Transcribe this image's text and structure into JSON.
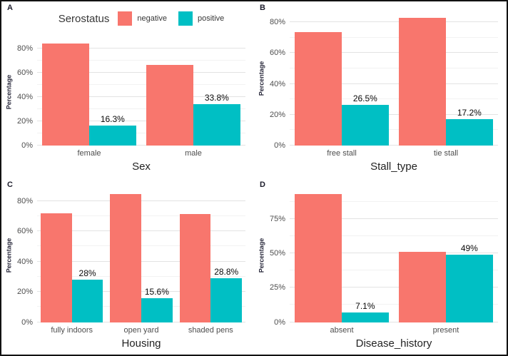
{
  "figure": {
    "legend": {
      "title": "Serostatus",
      "position": "top",
      "items": [
        {
          "label": "negative",
          "color": "#F8766D"
        },
        {
          "label": "positive",
          "color": "#00BFC4"
        }
      ]
    },
    "colors": {
      "negative": "#F8766D",
      "positive": "#00BFC4",
      "grid_major": "#e3e3e3",
      "grid_minor": "#f2f2f2",
      "axis_text": "#4e4e4e"
    }
  },
  "chart_data": [
    {
      "panel": "A",
      "type": "bar",
      "xlabel": "Sex",
      "ylabel": "Percentage",
      "categories": [
        "female",
        "male"
      ],
      "series": [
        {
          "name": "negative",
          "color": "#F8766D",
          "values": [
            83.7,
            66.2
          ]
        },
        {
          "name": "positive",
          "color": "#00BFC4",
          "values": [
            16.3,
            33.8
          ],
          "labels": [
            "16.3%",
            "33.8%"
          ]
        }
      ],
      "yticks": [
        0,
        20,
        40,
        60,
        80
      ],
      "ytick_labels": [
        "0%",
        "20%",
        "40%",
        "60%",
        "80%"
      ],
      "yticks_minor": [
        10,
        30,
        50,
        70
      ],
      "ylim": [
        0,
        88
      ],
      "grid": true,
      "legend_position": "top"
    },
    {
      "panel": "B",
      "type": "bar",
      "xlabel": "Stall_type",
      "ylabel": "Percentage",
      "categories": [
        "free stall",
        "tie stall"
      ],
      "series": [
        {
          "name": "negative",
          "color": "#F8766D",
          "values": [
            73.5,
            82.8
          ]
        },
        {
          "name": "positive",
          "color": "#00BFC4",
          "values": [
            26.5,
            17.2
          ],
          "labels": [
            "26.5%",
            "17.2%"
          ]
        }
      ],
      "yticks": [
        0,
        20,
        40,
        60,
        80
      ],
      "ytick_labels": [
        "0%",
        "20%",
        "40%",
        "60%",
        "80%"
      ],
      "yticks_minor": [
        10,
        30,
        50,
        70
      ],
      "ylim": [
        0,
        87
      ],
      "grid": true,
      "legend_position": "none"
    },
    {
      "panel": "C",
      "type": "bar",
      "xlabel": "Housing",
      "ylabel": "Percentage",
      "categories": [
        "fully indoors",
        "open yard",
        "shaded pens"
      ],
      "series": [
        {
          "name": "negative",
          "color": "#F8766D",
          "values": [
            72.0,
            84.4,
            71.2
          ]
        },
        {
          "name": "positive",
          "color": "#00BFC4",
          "values": [
            28.0,
            15.6,
            28.8
          ],
          "labels": [
            "28%",
            "15.6%",
            "28.8%"
          ]
        }
      ],
      "yticks": [
        0,
        20,
        40,
        60,
        80
      ],
      "ytick_labels": [
        "0%",
        "20%",
        "40%",
        "60%",
        "80%"
      ],
      "yticks_minor": [
        10,
        30,
        50,
        70
      ],
      "ylim": [
        0,
        88.6
      ],
      "grid": true,
      "legend_position": "none"
    },
    {
      "panel": "D",
      "type": "bar",
      "xlabel": "Disease_history",
      "ylabel": "Percentage",
      "categories": [
        "absent",
        "present"
      ],
      "series": [
        {
          "name": "negative",
          "color": "#F8766D",
          "values": [
            92.9,
            51.0
          ]
        },
        {
          "name": "positive",
          "color": "#00BFC4",
          "values": [
            7.1,
            49.0
          ],
          "labels": [
            "7.1%",
            "49%"
          ]
        }
      ],
      "yticks": [
        0,
        25,
        50,
        75
      ],
      "ytick_labels": [
        "0%",
        "25%",
        "50%",
        "75%"
      ],
      "yticks_minor": [
        12.5,
        37.5,
        62.5,
        87.5
      ],
      "ylim": [
        0,
        97.5
      ],
      "grid": true,
      "legend_position": "none"
    }
  ]
}
